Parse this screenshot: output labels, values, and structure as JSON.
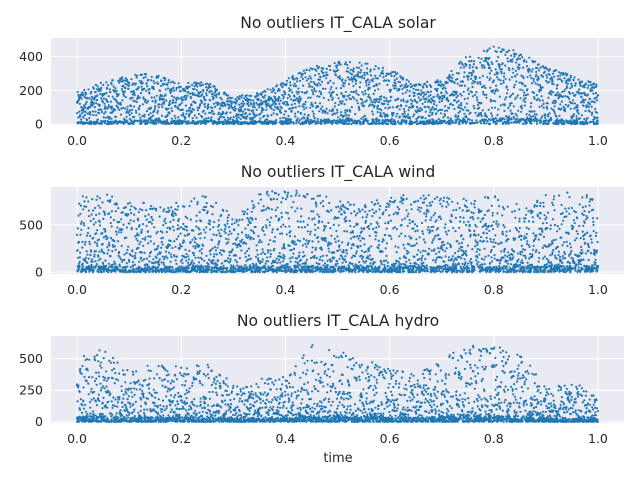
{
  "chart_data": [
    {
      "type": "scatter",
      "title": "No outliers IT_CALA solar",
      "xlabel": "",
      "ylabel": "",
      "xlim": [
        -0.05,
        1.05
      ],
      "ylim": [
        -5,
        510
      ],
      "xticks": [
        0.0,
        0.2,
        0.4,
        0.6,
        0.8,
        1.0
      ],
      "xtick_labels": [
        "0.0",
        "0.2",
        "0.4",
        "0.6",
        "0.8",
        "1.0"
      ],
      "yticks": [
        0,
        200,
        400
      ],
      "ytick_labels": [
        "0",
        "200",
        "400"
      ],
      "grid": true,
      "color": "#1f77b4",
      "series": [
        {
          "x": [
            0.0,
            0.05,
            0.1,
            0.15,
            0.2,
            0.25,
            0.3,
            0.35,
            0.4,
            0.45,
            0.5,
            0.55,
            0.6,
            0.65,
            0.7,
            0.75,
            0.8,
            0.85,
            0.9,
            0.95,
            1.0
          ],
          "y_max": [
            190,
            250,
            290,
            305,
            240,
            255,
            170,
            185,
            270,
            350,
            370,
            365,
            330,
            240,
            270,
            410,
            460,
            430,
            340,
            290,
            240
          ]
        }
      ]
    },
    {
      "type": "scatter",
      "title": "No outliers IT_CALA wind",
      "xlabel": "",
      "ylabel": "",
      "xlim": [
        -0.05,
        1.05
      ],
      "ylim": [
        -20,
        900
      ],
      "xticks": [
        0.0,
        0.2,
        0.4,
        0.6,
        0.8,
        1.0
      ],
      "xtick_labels": [
        "0.0",
        "0.2",
        "0.4",
        "0.6",
        "0.8",
        "1.0"
      ],
      "yticks": [
        0,
        500
      ],
      "ytick_labels": [
        "0",
        "500"
      ],
      "grid": true,
      "color": "#1f77b4",
      "series": [
        {
          "x": [
            0.0,
            0.05,
            0.1,
            0.15,
            0.2,
            0.25,
            0.3,
            0.35,
            0.4,
            0.45,
            0.5,
            0.55,
            0.6,
            0.65,
            0.7,
            0.75,
            0.8,
            0.85,
            0.9,
            0.95,
            1.0
          ],
          "y_max": [
            820,
            830,
            780,
            700,
            740,
            820,
            600,
            840,
            880,
            840,
            780,
            720,
            820,
            830,
            810,
            780,
            820,
            720,
            830,
            850,
            820
          ]
        }
      ]
    },
    {
      "type": "scatter",
      "title": "No outliers IT_CALA hydro",
      "xlabel": "time",
      "ylabel": "",
      "xlim": [
        -0.05,
        1.05
      ],
      "ylim": [
        -10,
        680
      ],
      "xticks": [
        0.0,
        0.2,
        0.4,
        0.6,
        0.8,
        1.0
      ],
      "xtick_labels": [
        "0.0",
        "0.2",
        "0.4",
        "0.6",
        "0.8",
        "1.0"
      ],
      "yticks": [
        0,
        250,
        500
      ],
      "ytick_labels": [
        "0",
        "250",
        "500"
      ],
      "grid": true,
      "color": "#1f77b4",
      "series": [
        {
          "x": [
            0.0,
            0.05,
            0.1,
            0.15,
            0.2,
            0.25,
            0.3,
            0.35,
            0.4,
            0.45,
            0.5,
            0.55,
            0.6,
            0.65,
            0.7,
            0.75,
            0.8,
            0.85,
            0.9,
            0.95,
            1.0
          ],
          "y_max": [
            500,
            580,
            420,
            460,
            450,
            470,
            300,
            340,
            360,
            620,
            560,
            540,
            420,
            380,
            560,
            600,
            620,
            560,
            300,
            320,
            220
          ]
        }
      ]
    }
  ]
}
